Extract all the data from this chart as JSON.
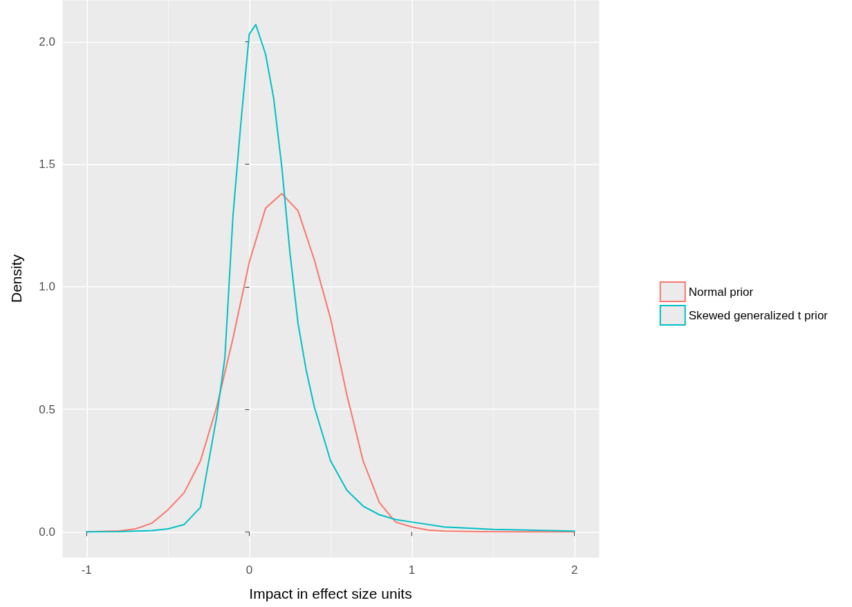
{
  "chart_data": {
    "type": "line",
    "xlabel": "Impact in effect size units",
    "ylabel": "Density",
    "xlim": [
      -1.15,
      2.15
    ],
    "xticks": [
      -1,
      0,
      1,
      2
    ],
    "ylim": [
      -0.1035,
      2.17
    ],
    "yticks": [
      {
        "value": 0,
        "label": "0.0"
      },
      {
        "value": 0.5,
        "label": "0.5"
      },
      {
        "value": 1,
        "label": "1.0"
      },
      {
        "value": 1.5,
        "label": "1.5"
      },
      {
        "value": 2,
        "label": "2.0"
      }
    ],
    "grid": true,
    "legend": "right",
    "marker": "none",
    "line_style": "solid",
    "series": [
      {
        "name": "Normal prior",
        "color": "#f8766d",
        "x": [
          -1,
          -0.8,
          -0.7,
          -0.6,
          -0.5,
          -0.4,
          -0.3,
          -0.2,
          -0.1,
          0,
          0.1,
          0.2,
          0.3,
          0.4,
          0.5,
          0.6,
          0.7,
          0.8,
          0.9,
          1,
          1.1,
          1.2,
          1.4,
          1.6,
          2
        ],
        "values": [
          0,
          0.004,
          0.012,
          0.035,
          0.09,
          0.16,
          0.29,
          0.51,
          0.79,
          1.1,
          1.32,
          1.38,
          1.31,
          1.11,
          0.87,
          0.56,
          0.29,
          0.12,
          0.04,
          0.02,
          0.007,
          0.003,
          0.001,
          0,
          0
        ]
      },
      {
        "name": "Skewed generalized t prior",
        "color": "#00bfc4",
        "x": [
          -1,
          -0.8,
          -0.6,
          -0.5,
          -0.4,
          -0.3,
          -0.2,
          -0.15,
          -0.1,
          -0.05,
          0,
          0.04,
          0.1,
          0.15,
          0.2,
          0.25,
          0.3,
          0.35,
          0.4,
          0.5,
          0.6,
          0.7,
          0.8,
          0.9,
          1,
          1.2,
          1.5,
          2
        ],
        "values": [
          0,
          0.001,
          0.005,
          0.012,
          0.03,
          0.1,
          0.47,
          0.71,
          1.29,
          1.68,
          2.03,
          2.07,
          1.95,
          1.77,
          1.49,
          1.14,
          0.85,
          0.66,
          0.51,
          0.29,
          0.17,
          0.105,
          0.07,
          0.05,
          0.04,
          0.02,
          0.01,
          0.003
        ]
      }
    ]
  }
}
